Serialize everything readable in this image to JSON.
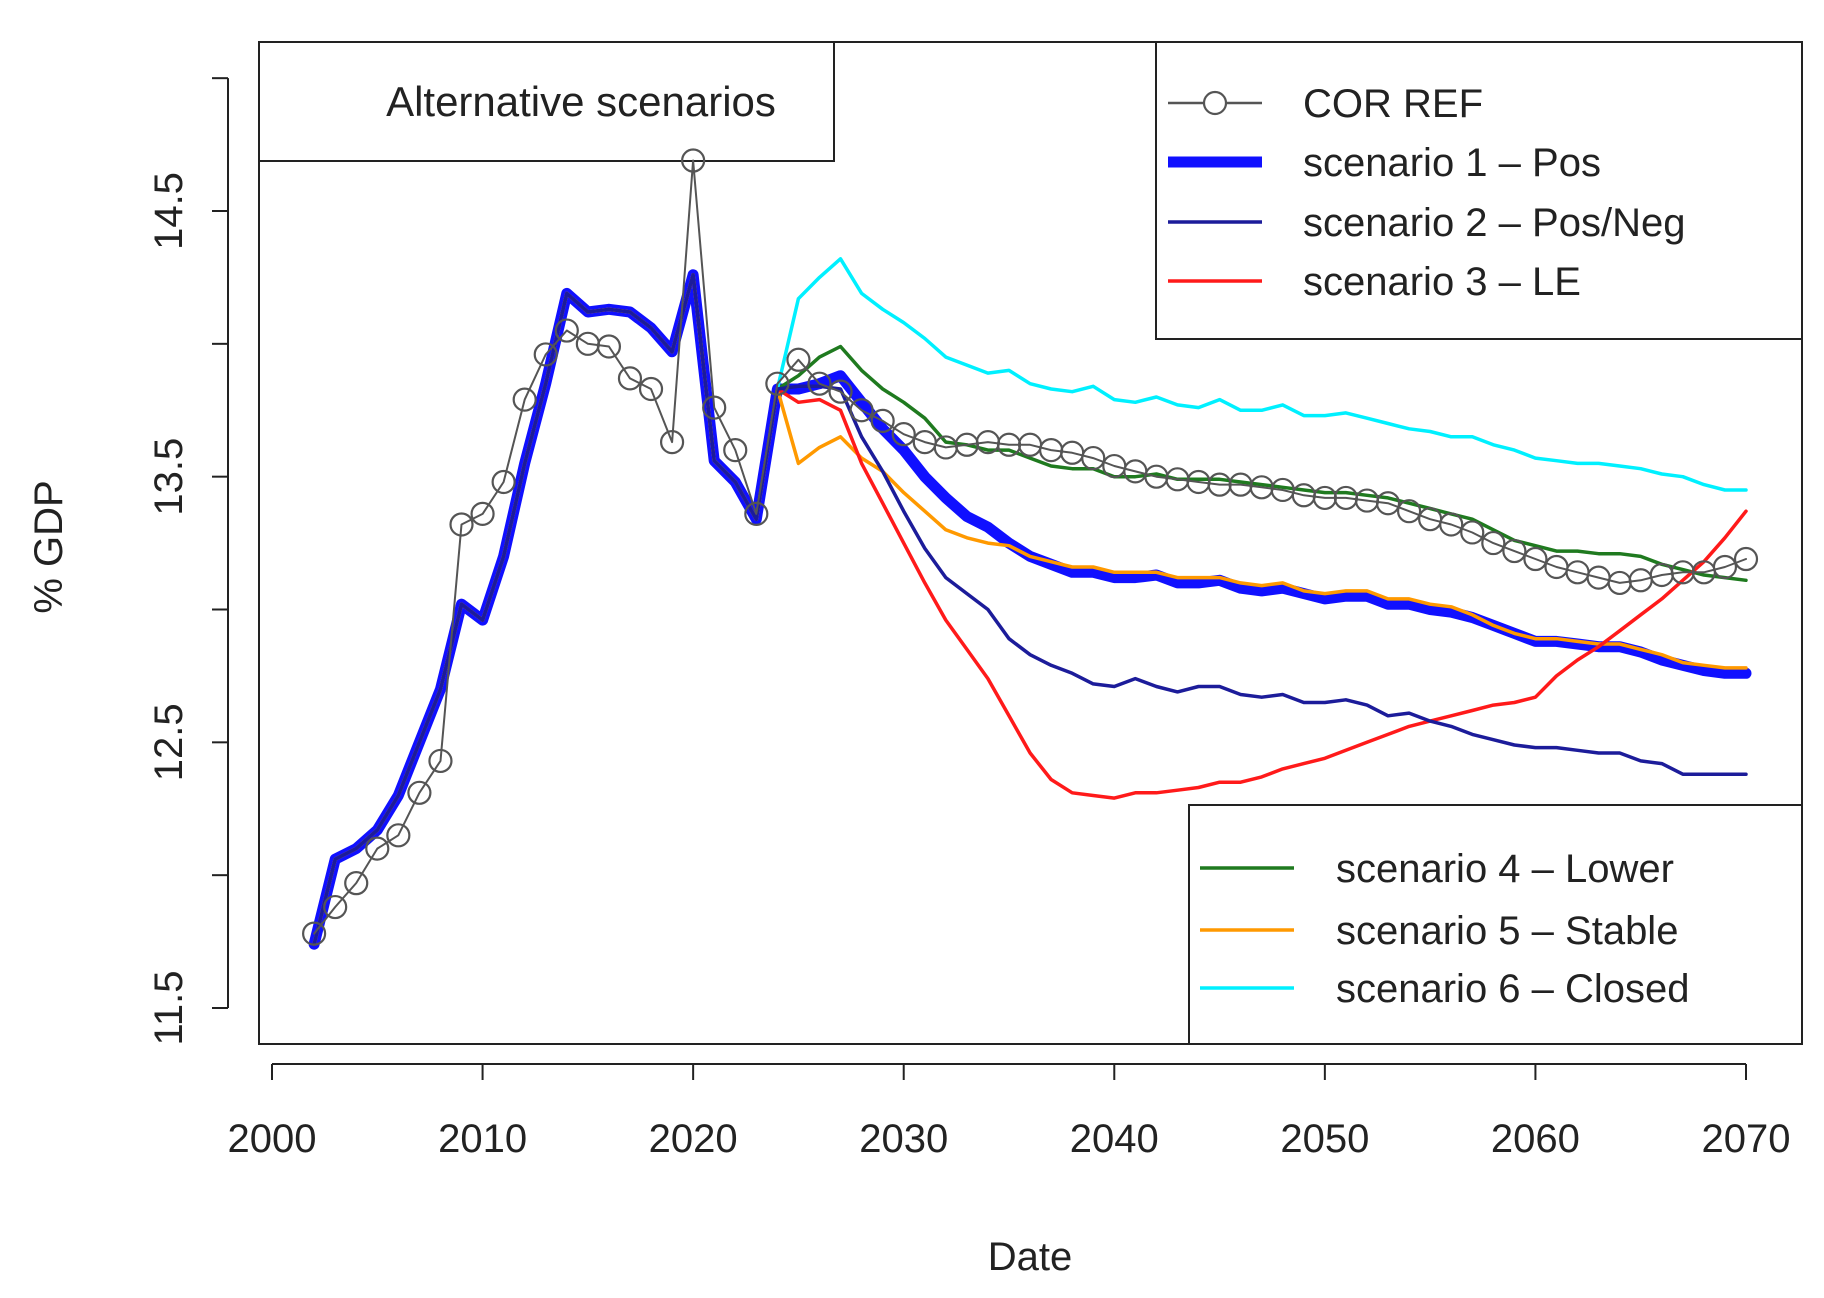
{
  "chart_data": {
    "type": "line",
    "title": "Alternative scenarios",
    "xlabel": "Date",
    "ylabel": "% GDP",
    "xlim": [
      2002,
      2070
    ],
    "ylim": [
      11.5,
      14.5
    ],
    "xticks": [
      "2000",
      "2010",
      "2020",
      "2030",
      "2040",
      "2050",
      "2060",
      "2070"
    ],
    "yticks": [
      "11.5",
      "12.5",
      "13.5",
      "14.5"
    ],
    "legend_top": [
      "COR REF",
      "scenario 1 – Pos",
      "scenario 2 – Pos/Neg",
      "scenario 3 – LE"
    ],
    "legend_bottom": [
      "scenario 4 – Lower",
      "scenario 5 – Stable",
      "scenario 6 – Closed"
    ],
    "colors": {
      "cor_ref": "#555555",
      "scenario1": "#1010ff",
      "scenario2": "#1c1c9a",
      "scenario3": "#ff1a1a",
      "scenario4": "#1f7a1f",
      "scenario5": "#ff9900",
      "scenario6": "#00f0ff"
    },
    "series": [
      {
        "name": "COR REF",
        "x": [
          2002,
          2003,
          2004,
          2005,
          2006,
          2007,
          2008,
          2009,
          2010,
          2011,
          2012,
          2013,
          2014,
          2015,
          2016,
          2017,
          2018,
          2019,
          2020,
          2021,
          2022,
          2023,
          2024,
          2025,
          2026,
          2027,
          2028,
          2029,
          2030,
          2031,
          2032,
          2033,
          2034,
          2035,
          2036,
          2037,
          2038,
          2039,
          2040,
          2041,
          2042,
          2043,
          2044,
          2045,
          2046,
          2047,
          2048,
          2049,
          2050,
          2051,
          2052,
          2053,
          2054,
          2055,
          2056,
          2057,
          2058,
          2059,
          2060,
          2061,
          2062,
          2063,
          2064,
          2065,
          2066,
          2067,
          2068,
          2069,
          2070
        ],
        "values": [
          11.78,
          11.88,
          11.97,
          12.1,
          12.15,
          12.31,
          12.43,
          13.32,
          13.36,
          13.48,
          13.79,
          13.96,
          14.05,
          14.0,
          13.99,
          13.87,
          13.83,
          13.63,
          14.69,
          13.76,
          13.6,
          13.36,
          13.85,
          13.94,
          13.85,
          13.82,
          13.75,
          13.71,
          13.66,
          13.63,
          13.61,
          13.62,
          13.63,
          13.62,
          13.62,
          13.6,
          13.59,
          13.57,
          13.54,
          13.52,
          13.5,
          13.49,
          13.48,
          13.47,
          13.47,
          13.46,
          13.45,
          13.43,
          13.42,
          13.42,
          13.41,
          13.4,
          13.37,
          13.34,
          13.32,
          13.29,
          13.25,
          13.22,
          13.19,
          13.16,
          13.14,
          13.12,
          13.1,
          13.11,
          13.13,
          13.14,
          13.14,
          13.16,
          13.19
        ]
      },
      {
        "name": "scenario 1 – Pos",
        "x": [
          2002,
          2003,
          2004,
          2005,
          2006,
          2007,
          2008,
          2009,
          2010,
          2011,
          2012,
          2013,
          2014,
          2015,
          2016,
          2017,
          2018,
          2019,
          2020,
          2021,
          2022,
          2023,
          2024,
          2025,
          2026,
          2027,
          2028,
          2029,
          2030,
          2031,
          2032,
          2033,
          2034,
          2035,
          2036,
          2037,
          2038,
          2039,
          2040,
          2041,
          2042,
          2043,
          2044,
          2045,
          2046,
          2047,
          2048,
          2049,
          2050,
          2051,
          2052,
          2053,
          2054,
          2055,
          2056,
          2057,
          2058,
          2059,
          2060,
          2061,
          2062,
          2063,
          2064,
          2065,
          2066,
          2067,
          2068,
          2069,
          2070
        ],
        "values": [
          11.74,
          12.06,
          12.1,
          12.17,
          12.3,
          12.5,
          12.7,
          13.02,
          12.96,
          13.2,
          13.55,
          13.85,
          14.19,
          14.12,
          14.13,
          14.12,
          14.06,
          13.97,
          14.26,
          13.56,
          13.48,
          13.34,
          13.83,
          13.83,
          13.85,
          13.88,
          13.78,
          13.68,
          13.6,
          13.5,
          13.42,
          13.35,
          13.31,
          13.25,
          13.2,
          13.17,
          13.14,
          13.14,
          13.12,
          13.12,
          13.13,
          13.1,
          13.1,
          13.11,
          13.08,
          13.07,
          13.08,
          13.06,
          13.04,
          13.05,
          13.05,
          13.02,
          13.02,
          13.0,
          12.99,
          12.97,
          12.94,
          12.91,
          12.88,
          12.88,
          12.87,
          12.86,
          12.86,
          12.84,
          12.81,
          12.79,
          12.77,
          12.76,
          12.76
        ]
      },
      {
        "name": "scenario 2 – Pos/Neg",
        "x": [
          2002,
          2003,
          2004,
          2005,
          2006,
          2007,
          2008,
          2009,
          2010,
          2011,
          2012,
          2013,
          2014,
          2015,
          2016,
          2017,
          2018,
          2019,
          2020,
          2021,
          2022,
          2023,
          2024,
          2025,
          2026,
          2027,
          2028,
          2029,
          2030,
          2031,
          2032,
          2033,
          2034,
          2035,
          2036,
          2037,
          2038,
          2039,
          2040,
          2041,
          2042,
          2043,
          2044,
          2045,
          2046,
          2047,
          2048,
          2049,
          2050,
          2051,
          2052,
          2053,
          2054,
          2055,
          2056,
          2057,
          2058,
          2059,
          2060,
          2061,
          2062,
          2063,
          2064,
          2065,
          2066,
          2067,
          2068,
          2069,
          2070
        ],
        "values": [
          11.74,
          12.06,
          12.1,
          12.17,
          12.3,
          12.5,
          12.7,
          13.02,
          12.96,
          13.2,
          13.55,
          13.85,
          14.19,
          14.12,
          14.13,
          14.12,
          14.06,
          13.97,
          14.26,
          13.56,
          13.48,
          13.34,
          13.83,
          13.84,
          13.84,
          13.83,
          13.65,
          13.52,
          13.37,
          13.23,
          13.12,
          13.06,
          13.0,
          12.89,
          12.83,
          12.79,
          12.76,
          12.72,
          12.71,
          12.74,
          12.71,
          12.69,
          12.71,
          12.71,
          12.68,
          12.67,
          12.68,
          12.65,
          12.65,
          12.66,
          12.64,
          12.6,
          12.61,
          12.58,
          12.56,
          12.53,
          12.51,
          12.49,
          12.48,
          12.48,
          12.47,
          12.46,
          12.46,
          12.43,
          12.42,
          12.38,
          12.38,
          12.38,
          12.38
        ]
      },
      {
        "name": "scenario 3 – LE",
        "x": [
          2002,
          2003,
          2004,
          2005,
          2006,
          2007,
          2008,
          2009,
          2010,
          2011,
          2012,
          2013,
          2014,
          2015,
          2016,
          2017,
          2018,
          2019,
          2020,
          2021,
          2022,
          2023,
          2024,
          2025,
          2026,
          2027,
          2028,
          2029,
          2030,
          2031,
          2032,
          2033,
          2034,
          2035,
          2036,
          2037,
          2038,
          2039,
          2040,
          2041,
          2042,
          2043,
          2044,
          2045,
          2046,
          2047,
          2048,
          2049,
          2050,
          2051,
          2052,
          2053,
          2054,
          2055,
          2056,
          2057,
          2058,
          2059,
          2060,
          2061,
          2062,
          2063,
          2064,
          2065,
          2066,
          2067,
          2068,
          2069,
          2070
        ],
        "values": [
          11.74,
          12.06,
          12.1,
          12.17,
          12.3,
          12.5,
          12.7,
          13.02,
          12.96,
          13.2,
          13.55,
          13.85,
          14.19,
          14.12,
          14.13,
          14.12,
          14.06,
          13.97,
          14.26,
          13.56,
          13.48,
          13.34,
          13.83,
          13.78,
          13.79,
          13.75,
          13.55,
          13.4,
          13.25,
          13.1,
          12.96,
          12.85,
          12.74,
          12.6,
          12.46,
          12.36,
          12.31,
          12.3,
          12.29,
          12.31,
          12.31,
          12.32,
          12.33,
          12.35,
          12.35,
          12.37,
          12.4,
          12.42,
          12.44,
          12.47,
          12.5,
          12.53,
          12.56,
          12.58,
          12.6,
          12.62,
          12.64,
          12.65,
          12.67,
          12.75,
          12.81,
          12.86,
          12.92,
          12.98,
          13.04,
          13.11,
          13.18,
          13.27,
          13.37
        ]
      },
      {
        "name": "scenario 4 – Lower",
        "x": [
          2002,
          2003,
          2004,
          2005,
          2006,
          2007,
          2008,
          2009,
          2010,
          2011,
          2012,
          2013,
          2014,
          2015,
          2016,
          2017,
          2018,
          2019,
          2020,
          2021,
          2022,
          2023,
          2024,
          2025,
          2026,
          2027,
          2028,
          2029,
          2030,
          2031,
          2032,
          2033,
          2034,
          2035,
          2036,
          2037,
          2038,
          2039,
          2040,
          2041,
          2042,
          2043,
          2044,
          2045,
          2046,
          2047,
          2048,
          2049,
          2050,
          2051,
          2052,
          2053,
          2054,
          2055,
          2056,
          2057,
          2058,
          2059,
          2060,
          2061,
          2062,
          2063,
          2064,
          2065,
          2066,
          2067,
          2068,
          2069,
          2070
        ],
        "values": [
          11.74,
          12.06,
          12.1,
          12.17,
          12.3,
          12.5,
          12.7,
          13.02,
          12.96,
          13.2,
          13.55,
          13.85,
          14.19,
          14.12,
          14.13,
          14.12,
          14.06,
          13.97,
          14.26,
          13.56,
          13.48,
          13.34,
          13.83,
          13.88,
          13.95,
          13.99,
          13.9,
          13.83,
          13.78,
          13.72,
          13.63,
          13.62,
          13.6,
          13.6,
          13.57,
          13.54,
          13.53,
          13.53,
          13.5,
          13.5,
          13.51,
          13.49,
          13.49,
          13.49,
          13.48,
          13.47,
          13.46,
          13.45,
          13.44,
          13.44,
          13.43,
          13.42,
          13.4,
          13.38,
          13.36,
          13.34,
          13.3,
          13.26,
          13.24,
          13.22,
          13.22,
          13.21,
          13.21,
          13.2,
          13.17,
          13.15,
          13.13,
          13.12,
          13.11
        ]
      },
      {
        "name": "scenario 5 – Stable",
        "x": [
          2002,
          2003,
          2004,
          2005,
          2006,
          2007,
          2008,
          2009,
          2010,
          2011,
          2012,
          2013,
          2014,
          2015,
          2016,
          2017,
          2018,
          2019,
          2020,
          2021,
          2022,
          2023,
          2024,
          2025,
          2026,
          2027,
          2028,
          2029,
          2030,
          2031,
          2032,
          2033,
          2034,
          2035,
          2036,
          2037,
          2038,
          2039,
          2040,
          2041,
          2042,
          2043,
          2044,
          2045,
          2046,
          2047,
          2048,
          2049,
          2050,
          2051,
          2052,
          2053,
          2054,
          2055,
          2056,
          2057,
          2058,
          2059,
          2060,
          2061,
          2062,
          2063,
          2064,
          2065,
          2066,
          2067,
          2068,
          2069,
          2070
        ],
        "values": [
          11.74,
          12.06,
          12.1,
          12.17,
          12.3,
          12.5,
          12.7,
          13.02,
          12.96,
          13.2,
          13.55,
          13.85,
          14.19,
          14.12,
          14.13,
          14.12,
          14.06,
          13.97,
          14.26,
          13.56,
          13.48,
          13.34,
          13.83,
          13.55,
          13.61,
          13.65,
          13.57,
          13.52,
          13.44,
          13.37,
          13.3,
          13.27,
          13.25,
          13.24,
          13.2,
          13.18,
          13.16,
          13.16,
          13.14,
          13.14,
          13.14,
          13.12,
          13.12,
          13.12,
          13.1,
          13.09,
          13.1,
          13.07,
          13.06,
          13.07,
          13.07,
          13.04,
          13.04,
          13.02,
          13.01,
          12.98,
          12.94,
          12.91,
          12.89,
          12.89,
          12.88,
          12.87,
          12.87,
          12.85,
          12.83,
          12.8,
          12.79,
          12.78,
          12.78
        ]
      },
      {
        "name": "scenario 6 – Closed",
        "x": [
          2002,
          2003,
          2004,
          2005,
          2006,
          2007,
          2008,
          2009,
          2010,
          2011,
          2012,
          2013,
          2014,
          2015,
          2016,
          2017,
          2018,
          2019,
          2020,
          2021,
          2022,
          2023,
          2024,
          2025,
          2026,
          2027,
          2028,
          2029,
          2030,
          2031,
          2032,
          2033,
          2034,
          2035,
          2036,
          2037,
          2038,
          2039,
          2040,
          2041,
          2042,
          2043,
          2044,
          2045,
          2046,
          2047,
          2048,
          2049,
          2050,
          2051,
          2052,
          2053,
          2054,
          2055,
          2056,
          2057,
          2058,
          2059,
          2060,
          2061,
          2062,
          2063,
          2064,
          2065,
          2066,
          2067,
          2068,
          2069,
          2070
        ],
        "values": [
          11.74,
          12.06,
          12.1,
          12.17,
          12.3,
          12.5,
          12.7,
          13.02,
          12.96,
          13.2,
          13.55,
          13.85,
          14.19,
          14.12,
          14.13,
          14.12,
          14.06,
          13.97,
          14.26,
          13.56,
          13.48,
          13.34,
          13.83,
          14.17,
          14.25,
          14.32,
          14.19,
          14.13,
          14.08,
          14.02,
          13.95,
          13.92,
          13.89,
          13.9,
          13.85,
          13.83,
          13.82,
          13.84,
          13.79,
          13.78,
          13.8,
          13.77,
          13.76,
          13.79,
          13.75,
          13.75,
          13.77,
          13.73,
          13.73,
          13.74,
          13.72,
          13.7,
          13.68,
          13.67,
          13.65,
          13.65,
          13.62,
          13.6,
          13.57,
          13.56,
          13.55,
          13.55,
          13.54,
          13.53,
          13.51,
          13.5,
          13.47,
          13.45,
          13.45
        ]
      }
    ]
  }
}
